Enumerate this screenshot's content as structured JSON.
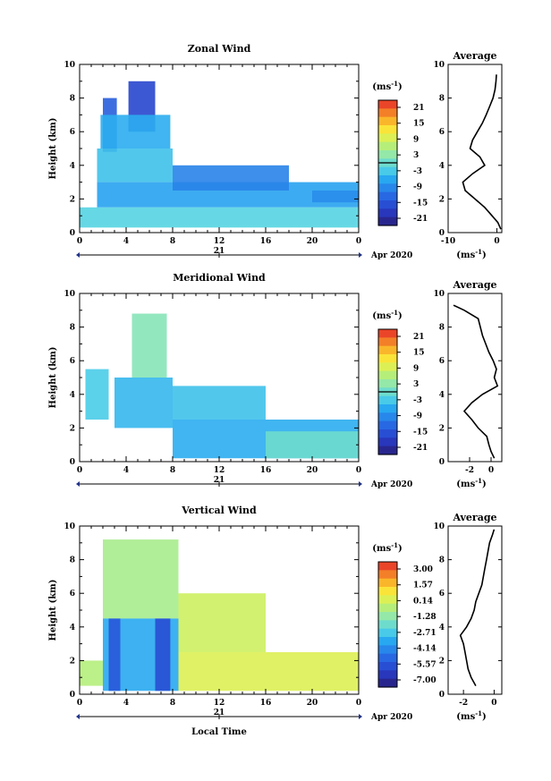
{
  "chart_data": [
    {
      "type": "heatmap",
      "title": "Zonal Wind",
      "ylabel": "Height (km)",
      "ylim": [
        0,
        10
      ],
      "xlim": [
        0,
        24
      ],
      "x_ticks": [
        "0",
        "4",
        "8",
        "12",
        "16",
        "20",
        "0"
      ],
      "y_ticks": [
        "0",
        "2",
        "4",
        "6",
        "8",
        "10"
      ],
      "date_ticks": [
        "21"
      ],
      "date_label": "Apr 2020",
      "colorbar": {
        "unit": "(ms",
        "unit_exp": "-1",
        "unit_close": ")",
        "ticks": [
          "21",
          "15",
          "9",
          "3",
          "-3",
          "-9",
          "-15",
          "-21"
        ],
        "range": [
          -24,
          24
        ],
        "zero_line": 0
      },
      "regions": [
        {
          "t": [
            2.0,
            3.2
          ],
          "h": [
            4.8,
            8.0
          ],
          "v": -14
        },
        {
          "t": [
            4.2,
            6.5
          ],
          "h": [
            6.0,
            9.0
          ],
          "v": -17
        },
        {
          "t": [
            1.8,
            7.8
          ],
          "h": [
            5.0,
            7.0
          ],
          "v": -6
        },
        {
          "t": [
            1.5,
            8.0
          ],
          "h": [
            3.0,
            5.0
          ],
          "v": -4
        },
        {
          "t": [
            1.5,
            24.0
          ],
          "h": [
            1.5,
            3.0
          ],
          "v": -7
        },
        {
          "t": [
            0.0,
            24.0
          ],
          "h": [
            0.3,
            1.5
          ],
          "v": -2
        },
        {
          "t": [
            8.0,
            18.0
          ],
          "h": [
            2.5,
            4.0
          ],
          "v": -10
        },
        {
          "t": [
            20.0,
            24.0
          ],
          "h": [
            1.8,
            2.5
          ],
          "v": -9
        }
      ],
      "average": {
        "title": "Average",
        "xlim": [
          -10,
          1
        ],
        "x_ticks": [
          "-10",
          "0"
        ],
        "unit": "(ms",
        "unit_exp": "-1",
        "unit_close": ")",
        "height": [
          0.2,
          0.6,
          1.0,
          1.5,
          2.0,
          2.5,
          3.0,
          3.5,
          4.0,
          4.5,
          5.0,
          5.5,
          6.0,
          6.5,
          7.0,
          7.5,
          8.0,
          8.5,
          9.0,
          9.4
        ],
        "value": [
          0.8,
          0.2,
          -1.0,
          -2.5,
          -4.5,
          -6.5,
          -7.0,
          -5.0,
          -2.5,
          -3.5,
          -5.5,
          -5.0,
          -4.0,
          -3.0,
          -2.2,
          -1.5,
          -0.8,
          -0.4,
          -0.2,
          -0.1
        ]
      }
    },
    {
      "type": "heatmap",
      "title": "Meridional Wind",
      "ylabel": "Height (km)",
      "ylim": [
        0,
        10
      ],
      "xlim": [
        0,
        24
      ],
      "x_ticks": [
        "0",
        "4",
        "8",
        "12",
        "16",
        "20",
        "0"
      ],
      "y_ticks": [
        "0",
        "2",
        "4",
        "6",
        "8",
        "10"
      ],
      "date_ticks": [
        "21"
      ],
      "date_label": "Apr 2020",
      "colorbar": {
        "unit": "(ms",
        "unit_exp": "-1",
        "unit_close": ")",
        "ticks": [
          "21",
          "15",
          "9",
          "3",
          "-3",
          "-9",
          "-15",
          "-21"
        ],
        "range": [
          -24,
          24
        ],
        "zero_line": 0
      },
      "regions": [
        {
          "t": [
            4.5,
            7.5
          ],
          "h": [
            5.0,
            8.8
          ],
          "v": 2
        },
        {
          "t": [
            3.0,
            8.0
          ],
          "h": [
            2.0,
            5.0
          ],
          "v": -5
        },
        {
          "t": [
            0.5,
            2.5
          ],
          "h": [
            2.5,
            5.5
          ],
          "v": -3
        },
        {
          "t": [
            8.0,
            16.0
          ],
          "h": [
            2.5,
            4.5
          ],
          "v": -4
        },
        {
          "t": [
            8.0,
            24.0
          ],
          "h": [
            0.2,
            2.5
          ],
          "v": -6
        },
        {
          "t": [
            16.0,
            24.0
          ],
          "h": [
            0.2,
            1.8
          ],
          "v": 0
        }
      ],
      "average": {
        "title": "Average",
        "xlim": [
          -4,
          1
        ],
        "x_ticks": [
          "-2",
          "0"
        ],
        "unit": "(ms",
        "unit_exp": "-1",
        "unit_close": ")",
        "height": [
          0.2,
          0.6,
          1.0,
          1.5,
          2.0,
          2.5,
          3.0,
          3.5,
          4.0,
          4.5,
          5.0,
          5.5,
          6.0,
          6.5,
          7.0,
          7.5,
          8.0,
          8.5,
          9.0,
          9.3
        ],
        "value": [
          0.3,
          0.0,
          -0.2,
          -0.4,
          -1.2,
          -1.8,
          -2.5,
          -1.8,
          -0.8,
          0.6,
          0.3,
          0.5,
          0.2,
          -0.2,
          -0.5,
          -0.8,
          -1.0,
          -1.2,
          -2.5,
          -3.5
        ]
      }
    },
    {
      "type": "heatmap",
      "title": "Vertical Wind",
      "xlabel": "Local Time",
      "ylabel": "Height (km)",
      "ylim": [
        0,
        10
      ],
      "xlim": [
        0,
        24
      ],
      "x_ticks": [
        "0",
        "4",
        "8",
        "12",
        "16",
        "20",
        "0"
      ],
      "y_ticks": [
        "0",
        "2",
        "4",
        "6",
        "8",
        "10"
      ],
      "date_ticks": [
        "21"
      ],
      "date_label": "Apr 2020",
      "colorbar": {
        "unit": "(ms",
        "unit_exp": "-1",
        "unit_close": ")",
        "ticks": [
          "3.00",
          "1.57",
          "0.14",
          "-1.28",
          "-2.71",
          "-4.14",
          "-5.57",
          "-7.00"
        ],
        "range": [
          -7.7,
          3.7
        ],
        "zero_line": null
      },
      "regions": [
        {
          "t": [
            2.0,
            8.5
          ],
          "h": [
            4.5,
            9.2
          ],
          "v": -0.8
        },
        {
          "t": [
            2.0,
            8.5
          ],
          "h": [
            0.2,
            4.5
          ],
          "v": -3.5
        },
        {
          "t": [
            2.5,
            3.5
          ],
          "h": [
            0.2,
            4.5
          ],
          "v": -5.5
        },
        {
          "t": [
            6.5,
            7.8
          ],
          "h": [
            0.2,
            4.5
          ],
          "v": -5.8
        },
        {
          "t": [
            8.5,
            24.0
          ],
          "h": [
            0.2,
            2.5
          ],
          "v": 0.3
        },
        {
          "t": [
            0.0,
            2.0
          ],
          "h": [
            0.5,
            2.0
          ],
          "v": -0.5
        },
        {
          "t": [
            8.5,
            16.0
          ],
          "h": [
            2.5,
            6.0
          ],
          "v": 0.0
        }
      ],
      "average": {
        "title": "Average",
        "xlim": [
          -3,
          0.5
        ],
        "x_ticks": [
          "-2",
          "0"
        ],
        "unit": "(ms",
        "unit_exp": "-1",
        "unit_close": ")",
        "height": [
          0.5,
          1.0,
          1.5,
          2.0,
          2.5,
          3.0,
          3.5,
          4.0,
          4.5,
          5.0,
          5.5,
          6.0,
          6.5,
          7.0,
          7.5,
          8.0,
          8.5,
          9.0,
          9.5,
          9.8
        ],
        "value": [
          -1.2,
          -1.5,
          -1.7,
          -1.8,
          -1.9,
          -2.0,
          -2.2,
          -1.8,
          -1.5,
          -1.3,
          -1.2,
          -1.0,
          -0.8,
          -0.7,
          -0.6,
          -0.5,
          -0.4,
          -0.3,
          -0.1,
          0.0
        ]
      }
    }
  ]
}
